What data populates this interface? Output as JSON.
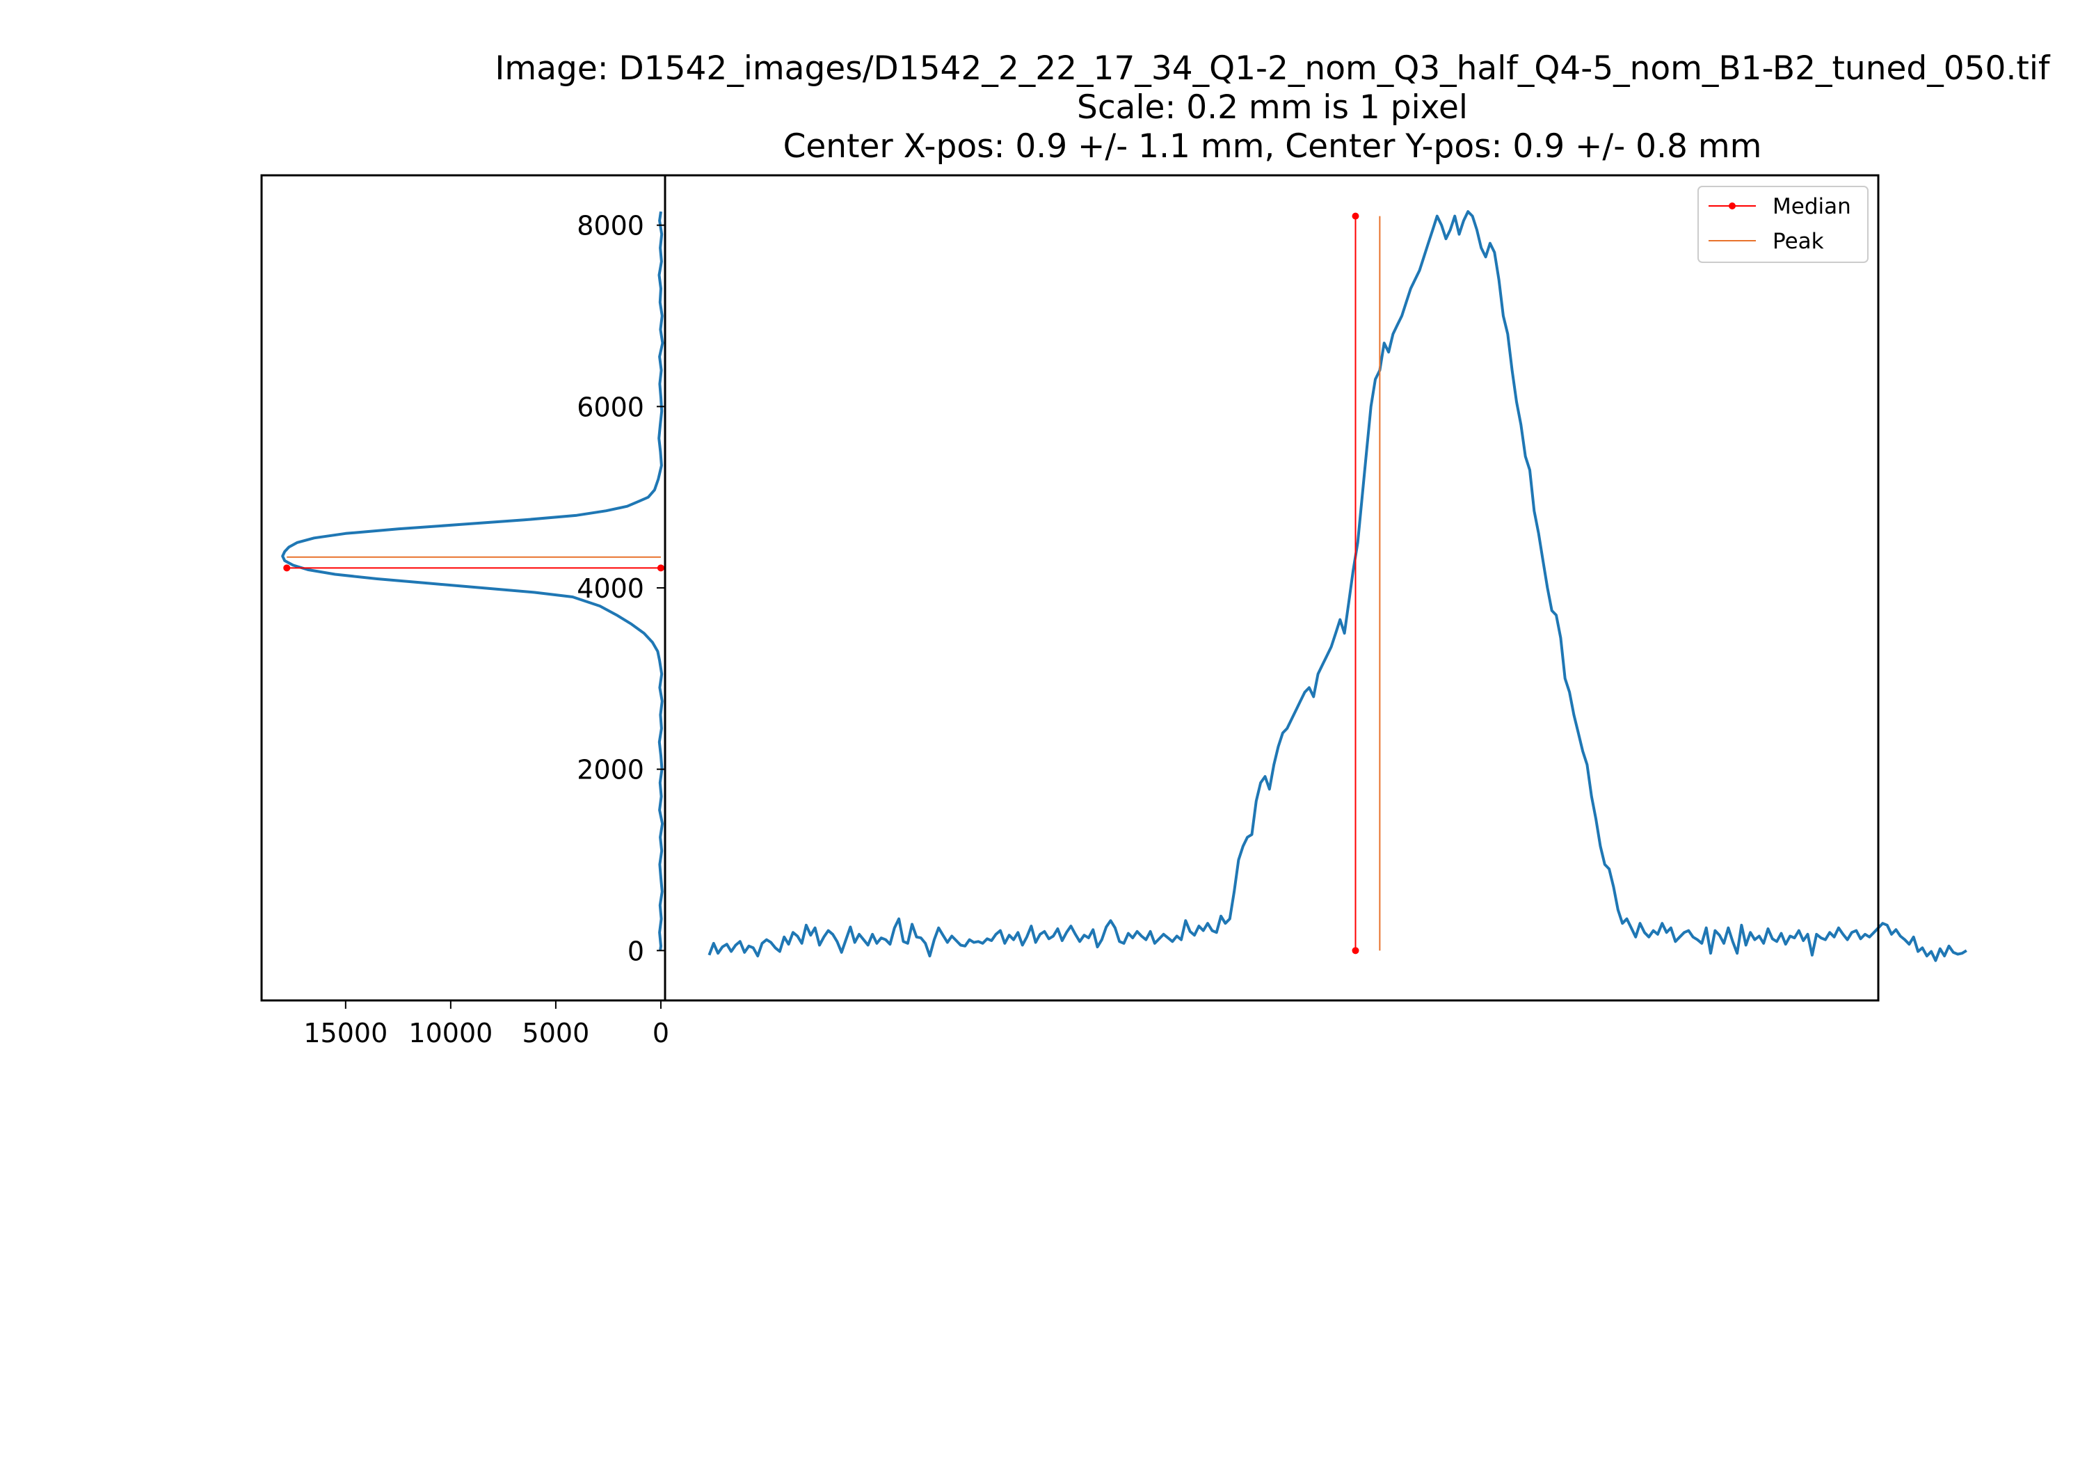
{
  "title_lines": [
    "Image: D1542_images/D1542_2_22_17_34_Q1-2_nom_Q3_half_Q4-5_nom_B1-B2_tuned_050.tif",
    "Scale: 0.2 mm is 1 pixel",
    "Center X-pos: 0.9 +/- 1.1 mm, Center Y-pos: 0.9 +/- 0.8 mm"
  ],
  "colors": {
    "profile": "#1f77b4",
    "median": "#ff0000",
    "peak": "#e8722c",
    "axes": "#000000"
  },
  "chart_data": [
    {
      "type": "line",
      "panel": "vertical-profile",
      "title": "",
      "xlabel": "",
      "ylabel": "",
      "xlim": [
        19000,
        -200
      ],
      "xlim_note_inverted": true,
      "ylim": [
        -550,
        8550
      ],
      "x_ticks": [
        15000,
        10000,
        5000,
        0
      ],
      "y_ticks": [
        0,
        2000,
        4000,
        6000,
        8000
      ],
      "grid": false,
      "series": [
        {
          "points": [
            [
              0,
              8150
            ],
            [
              60,
              8050
            ],
            [
              -40,
              7900
            ],
            [
              30,
              7750
            ],
            [
              -30,
              7600
            ],
            [
              80,
              7450
            ],
            [
              0,
              7300
            ],
            [
              40,
              7150
            ],
            [
              -60,
              7000
            ],
            [
              20,
              6850
            ],
            [
              -80,
              6700
            ],
            [
              60,
              6550
            ],
            [
              -20,
              6400
            ],
            [
              50,
              6250
            ],
            [
              0,
              6100
            ],
            [
              -40,
              5950
            ],
            [
              30,
              5800
            ],
            [
              90,
              5650
            ],
            [
              20,
              5500
            ],
            [
              -30,
              5350
            ],
            [
              120,
              5200
            ],
            [
              300,
              5080
            ],
            [
              600,
              5000
            ],
            [
              1000,
              4960
            ],
            [
              1600,
              4900
            ],
            [
              2600,
              4850
            ],
            [
              4000,
              4800
            ],
            [
              6500,
              4750
            ],
            [
              9500,
              4700
            ],
            [
              12500,
              4650
            ],
            [
              15000,
              4600
            ],
            [
              16500,
              4550
            ],
            [
              17300,
              4500
            ],
            [
              17700,
              4450
            ],
            [
              17900,
              4400
            ],
            [
              18000,
              4350
            ],
            [
              17900,
              4300
            ],
            [
              17500,
              4250
            ],
            [
              16800,
              4200
            ],
            [
              15500,
              4150
            ],
            [
              13500,
              4100
            ],
            [
              11000,
              4050
            ],
            [
              8500,
              4000
            ],
            [
              6000,
              3950
            ],
            [
              4200,
              3900
            ],
            [
              2900,
              3800
            ],
            [
              2100,
              3700
            ],
            [
              1400,
              3600
            ],
            [
              800,
              3500
            ],
            [
              400,
              3400
            ],
            [
              150,
              3300
            ],
            [
              60,
              3200
            ],
            [
              -40,
              3050
            ],
            [
              50,
              2900
            ],
            [
              -60,
              2750
            ],
            [
              20,
              2600
            ],
            [
              -30,
              2450
            ],
            [
              70,
              2300
            ],
            [
              0,
              2150
            ],
            [
              -50,
              2000
            ],
            [
              40,
              1850
            ],
            [
              -20,
              1700
            ],
            [
              60,
              1550
            ],
            [
              -70,
              1400
            ],
            [
              30,
              1250
            ],
            [
              -40,
              1100
            ],
            [
              50,
              950
            ],
            [
              0,
              800
            ],
            [
              -60,
              650
            ],
            [
              40,
              500
            ],
            [
              -20,
              350
            ],
            [
              60,
              200
            ],
            [
              0,
              50
            ],
            [
              30,
              0
            ]
          ]
        }
      ],
      "median": {
        "start": [
          0,
          4220
        ],
        "end": [
          17800,
          4220
        ],
        "markers": true
      },
      "peak": {
        "start": [
          0,
          4340
        ],
        "end": [
          17800,
          4340
        ],
        "markers": false
      }
    },
    {
      "type": "line",
      "panel": "horizontal-profile",
      "title": "",
      "xlabel": "",
      "ylabel": "",
      "xlim": [
        -10,
        265
      ],
      "ylim": [
        -550,
        8550
      ],
      "x_ticks": [],
      "grid": false,
      "legend": {
        "placement": "upper right",
        "entries": [
          "Median",
          "Peak"
        ]
      },
      "series": [
        {
          "values": [
            -50,
            80,
            -30,
            40,
            70,
            -10,
            60,
            100,
            -20,
            50,
            30,
            -60,
            80,
            120,
            90,
            30,
            -10,
            150,
            70,
            200,
            160,
            80,
            280,
            170,
            250,
            60,
            150,
            220,
            180,
            100,
            -20,
            120,
            260,
            90,
            180,
            120,
            60,
            180,
            80,
            140,
            120,
            70,
            250,
            350,
            100,
            80,
            290,
            150,
            140,
            80,
            -60,
            120,
            250,
            170,
            90,
            160,
            110,
            60,
            50,
            120,
            90,
            100,
            80,
            130,
            110,
            180,
            220,
            80,
            170,
            120,
            200,
            60,
            150,
            270,
            90,
            180,
            210,
            130,
            160,
            240,
            110,
            200,
            270,
            180,
            100,
            170,
            140,
            230,
            40,
            120,
            260,
            330,
            250,
            100,
            80,
            190,
            140,
            210,
            160,
            120,
            210,
            80,
            130,
            180,
            140,
            100,
            160,
            120,
            330,
            210,
            170,
            270,
            220,
            300,
            220,
            200,
            380,
            300,
            350,
            650,
            1000,
            1150,
            1250,
            1280,
            1650,
            1850,
            1920,
            1780,
            2050,
            2250,
            2400,
            2450,
            2550,
            2650,
            2750,
            2850,
            2900,
            2800,
            3050,
            3150,
            3250,
            3350,
            3500,
            3650,
            3500,
            3850,
            4200,
            4500,
            5000,
            5500,
            6000,
            6300,
            6400,
            6700,
            6600,
            6800,
            6900,
            7000,
            7150,
            7300,
            7400,
            7500,
            7650,
            7800,
            7950,
            8100,
            8000,
            7850,
            7950,
            8100,
            7900,
            8050,
            8150,
            8100,
            7950,
            7750,
            7650,
            7800,
            7700,
            7400,
            7000,
            6800,
            6400,
            6050,
            5800,
            5450,
            5300,
            4850,
            4600,
            4300,
            4000,
            3750,
            3700,
            3450,
            3000,
            2850,
            2600,
            2400,
            2200,
            2050,
            1700,
            1450,
            1150,
            950,
            900,
            700,
            450,
            300,
            350,
            250,
            150,
            300,
            200,
            150,
            220,
            180,
            300,
            200,
            250,
            100,
            150,
            200,
            220,
            150,
            120,
            80,
            250,
            -30,
            220,
            170,
            80,
            250,
            100,
            -30,
            280,
            60,
            200,
            120,
            160,
            80,
            240,
            130,
            100,
            190,
            70,
            160,
            140,
            220,
            110,
            180,
            -50,
            180,
            140,
            120,
            200,
            150,
            250,
            180,
            120,
            200,
            220,
            130,
            180,
            150,
            200,
            250,
            300,
            280,
            180,
            230,
            160,
            120,
            70,
            150,
            -10,
            30,
            -60,
            -10,
            -110,
            20,
            -60,
            50,
            -20,
            -40,
            -30,
            0
          ]
        }
      ],
      "median": {
        "x": 146.5,
        "y_range": [
          0,
          8100
        ],
        "markers": true
      },
      "peak": {
        "x": 152,
        "y_range": [
          0,
          8100
        ],
        "markers": false
      }
    }
  ]
}
